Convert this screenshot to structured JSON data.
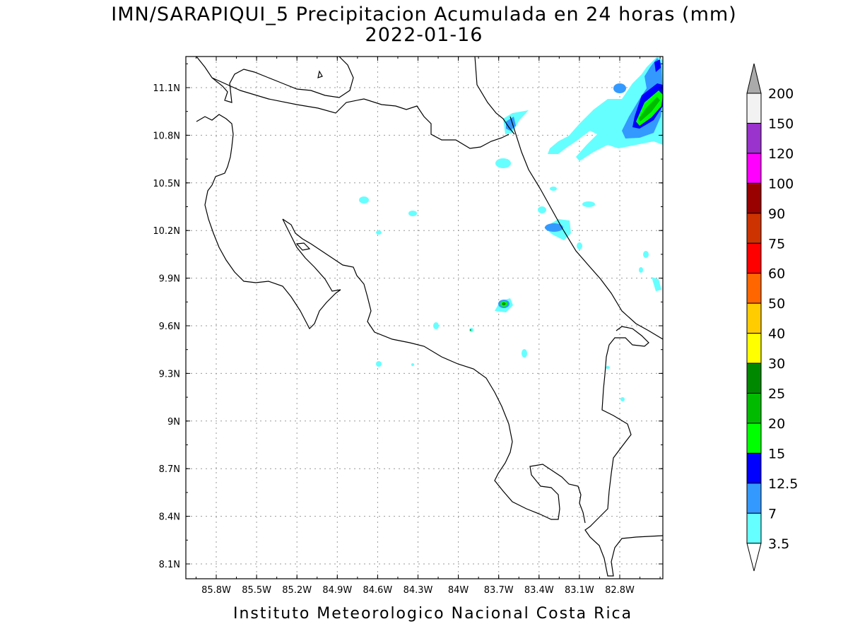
{
  "title": "IMN/SARAPIQUI_5 Precipitacion Acumulada en 24 horas (mm)",
  "date": "2022-01-16",
  "footer": "Instituto Meteorologico Nacional Costa Rica",
  "map": {
    "lon_ticks": [
      "85.8W",
      "85.5W",
      "85.2W",
      "84.9W",
      "84.6W",
      "84.3W",
      "84W",
      "83.7W",
      "83.4W",
      "83.1W",
      "82.8W"
    ],
    "lat_ticks": [
      "11.1N",
      "10.8N",
      "10.5N",
      "10.2N",
      "9.9N",
      "9.6N",
      "9.3N",
      "9N",
      "8.7N",
      "8.4N",
      "8.1N"
    ]
  },
  "colorbar": {
    "labels": [
      "200",
      "150",
      "120",
      "100",
      "90",
      "75",
      "60",
      "50",
      "40",
      "30",
      "25",
      "20",
      "15",
      "12.5",
      "7",
      "3.5"
    ],
    "colors": [
      "#f2f2f2",
      "#9a32cd",
      "#ff00ff",
      "#990000",
      "#cc3300",
      "#ff0000",
      "#ff6600",
      "#ffcc00",
      "#ffff00",
      "#008800",
      "#00bb00",
      "#00ff00",
      "#0000ff",
      "#3399ff",
      "#66ffff"
    ],
    "top_arrow_color": "#aaaaaa"
  }
}
